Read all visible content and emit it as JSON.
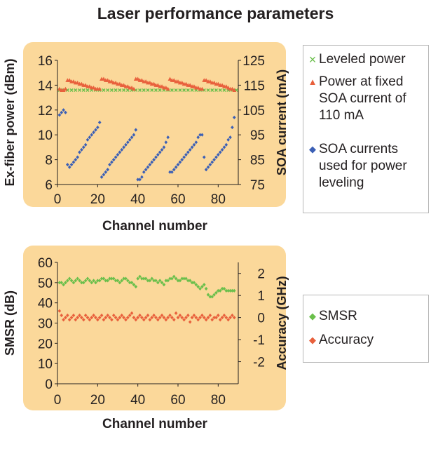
{
  "figure_title": "Laser performance parameters",
  "colors": {
    "panel_bg": "#fbd89a",
    "green_marker": "#6abf4b",
    "red_marker": "#e8603c",
    "blue_marker": "#3b5fb5",
    "axis": "#231f20"
  },
  "chart_data": [
    {
      "type": "scatter",
      "title": "",
      "xlabel": "Channel number",
      "ylabel_left": "Ex-fiber power (dBm)",
      "ylabel_right": "SOA current (mA)",
      "xlim": [
        0,
        90
      ],
      "ylim_left": [
        6,
        16
      ],
      "ylim_right": [
        75,
        125
      ],
      "x_ticks": [
        0,
        20,
        40,
        60,
        80
      ],
      "y_ticks_left": [
        6,
        8,
        10,
        12,
        14,
        16
      ],
      "y_ticks_right": [
        75,
        85,
        95,
        105,
        115,
        125
      ],
      "grid": false,
      "legend_position": "right",
      "series": [
        {
          "name": "Leveled power",
          "marker": "x",
          "color": "#6abf4b",
          "axis": "left",
          "x": [
            1,
            3,
            5,
            7,
            9,
            11,
            13,
            15,
            17,
            19,
            21,
            23,
            25,
            27,
            29,
            31,
            33,
            35,
            37,
            39,
            41,
            43,
            45,
            47,
            49,
            51,
            53,
            55,
            57,
            59,
            61,
            63,
            65,
            67,
            69,
            71,
            73,
            75,
            77,
            79,
            81,
            83,
            85,
            87,
            89
          ],
          "y": [
            13.6,
            13.6,
            13.6,
            13.6,
            13.6,
            13.6,
            13.6,
            13.6,
            13.6,
            13.6,
            13.6,
            13.6,
            13.6,
            13.6,
            13.6,
            13.6,
            13.6,
            13.6,
            13.6,
            13.6,
            13.6,
            13.6,
            13.6,
            13.6,
            13.6,
            13.6,
            13.6,
            13.6,
            13.6,
            13.6,
            13.6,
            13.6,
            13.6,
            13.6,
            13.6,
            13.6,
            13.6,
            13.6,
            13.6,
            13.6,
            13.6,
            13.6,
            13.6,
            13.6,
            13.6
          ]
        },
        {
          "name": "Power at fixed SOA current of 110 mA",
          "marker": "triangle",
          "color": "#e8603c",
          "axis": "left",
          "x": [
            1,
            2,
            3,
            4,
            5,
            6,
            7,
            8,
            9,
            10,
            11,
            12,
            13,
            14,
            15,
            16,
            17,
            18,
            19,
            20,
            21,
            22,
            23,
            24,
            25,
            26,
            27,
            28,
            29,
            30,
            31,
            32,
            33,
            34,
            35,
            36,
            37,
            38,
            39,
            40,
            41,
            42,
            43,
            44,
            45,
            46,
            47,
            48,
            49,
            50,
            51,
            52,
            53,
            54,
            55,
            56,
            57,
            58,
            59,
            60,
            61,
            62,
            63,
            64,
            65,
            66,
            67,
            68,
            69,
            70,
            71,
            72,
            73,
            74,
            75,
            76,
            77,
            78,
            79,
            80,
            81,
            82,
            83,
            84,
            85,
            86,
            87,
            88
          ],
          "y": [
            13.7,
            13.6,
            13.6,
            13.7,
            14.4,
            14.4,
            14.3,
            14.3,
            14.2,
            14.2,
            14.1,
            14.1,
            14.0,
            14.0,
            13.9,
            13.9,
            13.8,
            13.8,
            13.7,
            13.7,
            13.7,
            14.5,
            14.5,
            14.4,
            14.4,
            14.3,
            14.3,
            14.2,
            14.2,
            14.1,
            14.1,
            14.0,
            14.0,
            13.9,
            13.9,
            13.8,
            13.8,
            13.7,
            14.5,
            14.5,
            14.4,
            14.4,
            14.3,
            14.3,
            14.2,
            14.2,
            14.1,
            14.1,
            14.0,
            14.0,
            13.9,
            13.9,
            13.8,
            13.8,
            13.7,
            14.5,
            14.4,
            14.4,
            14.3,
            14.3,
            14.2,
            14.2,
            14.1,
            14.1,
            14.0,
            14.0,
            13.9,
            13.9,
            13.8,
            13.8,
            13.7,
            13.7,
            14.4,
            14.4,
            14.3,
            14.3,
            14.2,
            14.2,
            14.1,
            14.1,
            14.0,
            14.0,
            13.9,
            13.9,
            13.8,
            13.7,
            13.7,
            13.6
          ]
        },
        {
          "name": "SOA currents used for power leveling",
          "marker": "diamond",
          "color": "#3b5fb5",
          "axis": "right",
          "x": [
            1,
            2,
            3,
            4,
            5,
            6,
            7,
            8,
            9,
            10,
            11,
            12,
            13,
            14,
            15,
            16,
            17,
            18,
            19,
            20,
            21,
            22,
            23,
            24,
            25,
            26,
            27,
            28,
            29,
            30,
            31,
            32,
            33,
            34,
            35,
            36,
            37,
            38,
            39,
            40,
            41,
            42,
            43,
            44,
            45,
            46,
            47,
            48,
            49,
            50,
            51,
            52,
            53,
            54,
            55,
            56,
            57,
            58,
            59,
            60,
            61,
            62,
            63,
            64,
            65,
            66,
            67,
            68,
            69,
            70,
            71,
            72,
            73,
            74,
            75,
            76,
            77,
            78,
            79,
            80,
            81,
            82,
            83,
            84,
            85,
            86,
            87,
            88
          ],
          "y": [
            103,
            104,
            105,
            104,
            83,
            82,
            83,
            84,
            85,
            86,
            88,
            89,
            90,
            91,
            93,
            94,
            95,
            96,
            97,
            98,
            100,
            78,
            79,
            80,
            81,
            83,
            84,
            85,
            86,
            87,
            88,
            89,
            90,
            91,
            92,
            93,
            94,
            95,
            97,
            77,
            77,
            78,
            80,
            81,
            82,
            83,
            84,
            85,
            86,
            87,
            88,
            89,
            90,
            92,
            94,
            80,
            80,
            81,
            82,
            83,
            84,
            85,
            86,
            87,
            88,
            89,
            90,
            91,
            92,
            94,
            95,
            95,
            86,
            81,
            82,
            83,
            84,
            85,
            86,
            87,
            88,
            89,
            90,
            91,
            93,
            94,
            98,
            102
          ]
        }
      ]
    },
    {
      "type": "scatter",
      "title": "",
      "xlabel": "Channel number",
      "ylabel_left": "SMSR (dB)",
      "ylabel_right": "Accuracy (GHz)",
      "xlim": [
        0,
        90
      ],
      "ylim_left": [
        0,
        60
      ],
      "ylim_right": [
        -3,
        2.5
      ],
      "x_ticks": [
        0,
        20,
        40,
        60,
        80
      ],
      "y_ticks_left": [
        0,
        10,
        20,
        30,
        40,
        50,
        60
      ],
      "y_ticks_right": [
        -2,
        -1,
        0,
        1,
        2
      ],
      "grid": false,
      "legend_position": "right",
      "series": [
        {
          "name": "SMSR",
          "marker": "diamond",
          "color": "#6abf4b",
          "axis": "left",
          "x": [
            1,
            2,
            3,
            4,
            5,
            6,
            7,
            8,
            9,
            10,
            11,
            12,
            13,
            14,
            15,
            16,
            17,
            18,
            19,
            20,
            21,
            22,
            23,
            24,
            25,
            26,
            27,
            28,
            29,
            30,
            31,
            32,
            33,
            34,
            35,
            36,
            37,
            38,
            39,
            40,
            41,
            42,
            43,
            44,
            45,
            46,
            47,
            48,
            49,
            50,
            51,
            52,
            53,
            54,
            55,
            56,
            57,
            58,
            59,
            60,
            61,
            62,
            63,
            64,
            65,
            66,
            67,
            68,
            69,
            70,
            71,
            72,
            73,
            74,
            75,
            76,
            77,
            78,
            79,
            80,
            81,
            82,
            83,
            84,
            85,
            86,
            87,
            88
          ],
          "y": [
            50,
            50,
            49,
            50,
            51,
            52,
            51,
            50,
            51,
            52,
            51,
            50,
            50,
            51,
            52,
            51,
            50,
            51,
            50,
            51,
            51,
            52,
            52,
            51,
            51,
            52,
            52,
            52,
            51,
            51,
            50,
            51,
            52,
            52,
            51,
            50,
            50,
            49,
            48,
            52,
            53,
            52,
            52,
            52,
            51,
            51,
            52,
            51,
            51,
            50,
            51,
            50,
            49,
            51,
            51,
            52,
            52,
            53,
            52,
            51,
            51,
            52,
            52,
            52,
            51,
            51,
            50,
            50,
            49,
            48,
            47,
            48,
            49,
            47,
            44,
            43,
            43,
            44,
            45,
            46,
            46,
            47,
            47,
            46,
            46,
            46,
            46,
            46
          ]
        },
        {
          "name": "Accuracy",
          "marker": "diamond",
          "color": "#e8603c",
          "axis": "right",
          "x": [
            1,
            2,
            3,
            4,
            5,
            6,
            7,
            8,
            9,
            10,
            11,
            12,
            13,
            14,
            15,
            16,
            17,
            18,
            19,
            20,
            21,
            22,
            23,
            24,
            25,
            26,
            27,
            28,
            29,
            30,
            31,
            32,
            33,
            34,
            35,
            36,
            37,
            38,
            39,
            40,
            41,
            42,
            43,
            44,
            45,
            46,
            47,
            48,
            49,
            50,
            51,
            52,
            53,
            54,
            55,
            56,
            57,
            58,
            59,
            60,
            61,
            62,
            63,
            64,
            65,
            66,
            67,
            68,
            69,
            70,
            71,
            72,
            73,
            74,
            75,
            76,
            77,
            78,
            79,
            80,
            81,
            82,
            83,
            84,
            85,
            86,
            87,
            88
          ],
          "y": [
            0.3,
            0.1,
            -0.1,
            0.0,
            0.1,
            -0.1,
            0.0,
            0.1,
            -0.1,
            0.0,
            0.1,
            0.0,
            -0.1,
            0.1,
            0.0,
            -0.1,
            0.0,
            0.1,
            0.0,
            -0.1,
            0.0,
            0.1,
            -0.1,
            0.0,
            0.1,
            0.0,
            -0.1,
            0.1,
            0.0,
            -0.1,
            0.0,
            0.1,
            0.0,
            -0.1,
            0.0,
            0.1,
            0.2,
            0.0,
            -0.1,
            0.0,
            0.1,
            0.0,
            -0.1,
            0.0,
            0.1,
            -0.1,
            0.0,
            0.1,
            0.0,
            -0.1,
            0.0,
            0.1,
            0.0,
            -0.1,
            0.0,
            0.1,
            0.0,
            -0.1,
            0.2,
            0.0,
            0.1,
            0.0,
            -0.1,
            0.0,
            0.1,
            -0.2,
            0.0,
            0.1,
            0.0,
            -0.1,
            0.0,
            0.1,
            0.0,
            -0.1,
            0.0,
            0.1,
            -0.1,
            0.0,
            0.0,
            0.1,
            -0.1,
            0.0,
            0.1,
            0.0,
            -0.1,
            0.0,
            0.1,
            0.0
          ]
        }
      ]
    }
  ]
}
